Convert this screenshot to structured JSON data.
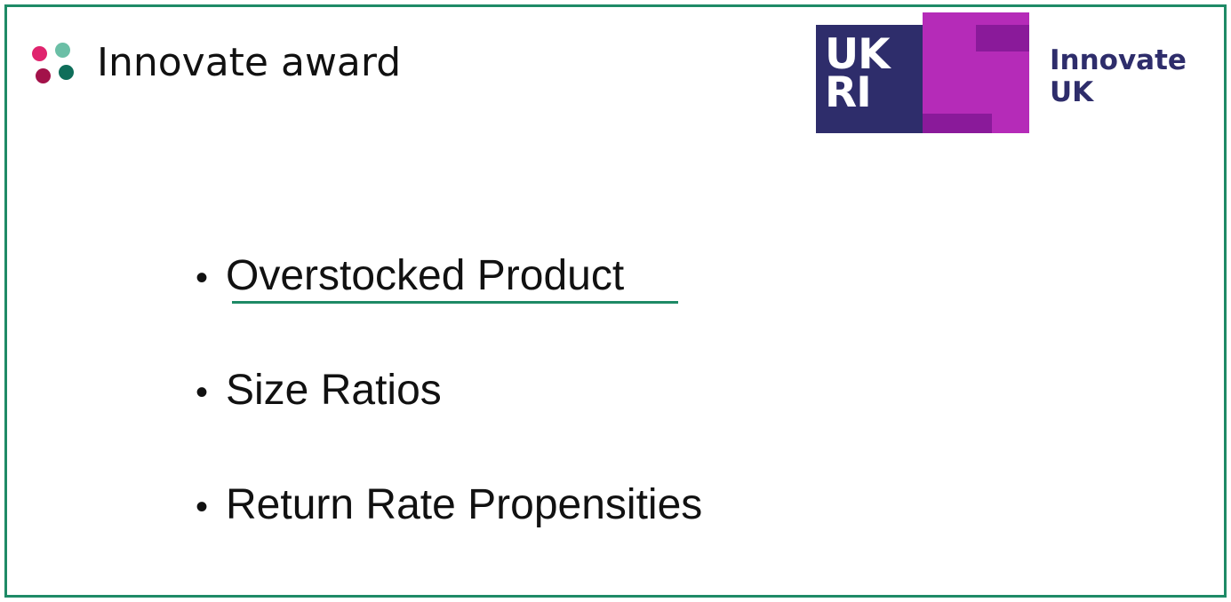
{
  "slide": {
    "title": "Innovate award",
    "accent_color": "#1e8a66",
    "title_icon": "four-dots-icon",
    "dot_colors": [
      "#e0246e",
      "#6bbfa6",
      "#a3124a",
      "#0f6e5a"
    ]
  },
  "logo": {
    "letters": [
      "UK",
      "RI"
    ],
    "lines": [
      "Innovate",
      "UK"
    ],
    "colors": {
      "navy": "#2e2d6b",
      "magenta": "#b52bb8",
      "purple": "#8a1a9a"
    }
  },
  "bullets": [
    {
      "text": "Overstocked Product",
      "underlined": true
    },
    {
      "text": "Size Ratios",
      "underlined": false
    },
    {
      "text": "Return Rate Propensities",
      "underlined": false
    }
  ],
  "bullet_symbol": "•"
}
